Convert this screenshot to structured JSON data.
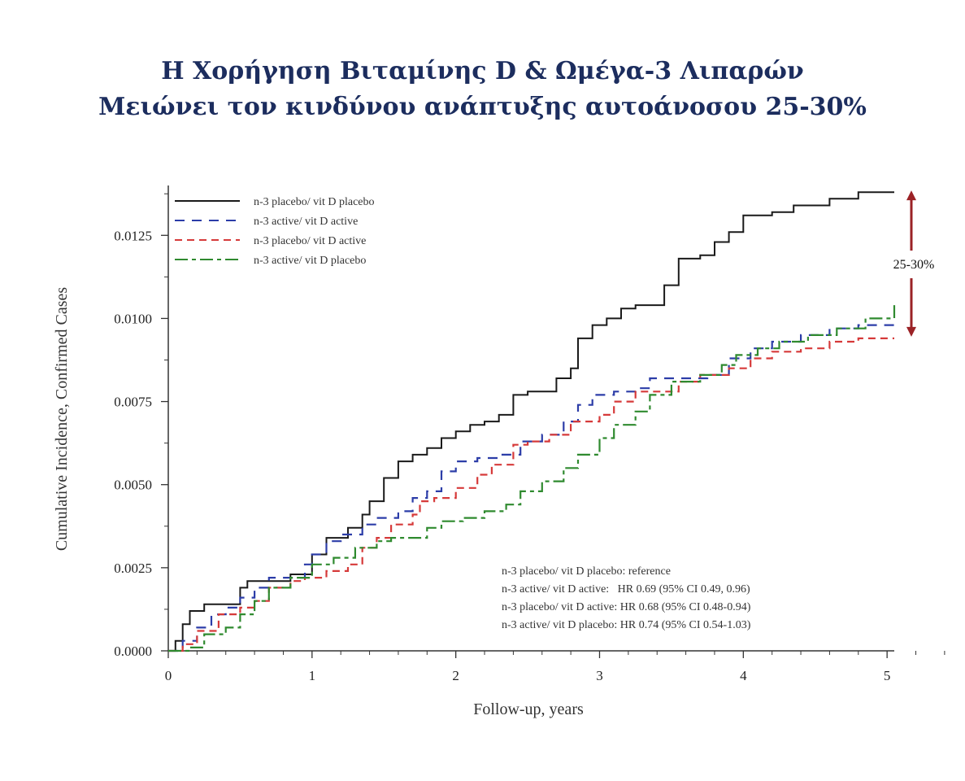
{
  "title": {
    "line1": "Η Χορήγηση Βιταμίνης D & Ωμέγα-3 Λιπαρών",
    "line2": "Μειώνει τον κινδύνου ανάπτυξης αυτοάνοσου 25-30%"
  },
  "chart_data": {
    "type": "line",
    "xlabel": "Follow-up, years",
    "ylabel": "Cumulative Incidence, Confirmed Cases",
    "xlim": [
      0,
      5.05
    ],
    "ylim": [
      0,
      0.014
    ],
    "x_ticks": [
      "0",
      "1",
      "2",
      "3",
      "4",
      "5"
    ],
    "y_ticks": [
      "0.0000",
      "0.0025",
      "0.0050",
      "0.0075",
      "0.0100",
      "0.0125"
    ],
    "grid": false,
    "legend_position": "top-left",
    "series": [
      {
        "name": "n-3 placebo/ vit D placebo",
        "color": "#1a1a1a",
        "dash": "solid",
        "points": [
          [
            0,
            0
          ],
          [
            0.05,
            0.0003
          ],
          [
            0.1,
            0.0008
          ],
          [
            0.15,
            0.0012
          ],
          [
            0.25,
            0.0014
          ],
          [
            0.4,
            0.0014
          ],
          [
            0.5,
            0.0019
          ],
          [
            0.55,
            0.0021
          ],
          [
            0.75,
            0.0021
          ],
          [
            0.85,
            0.0023
          ],
          [
            1.0,
            0.0029
          ],
          [
            1.1,
            0.0034
          ],
          [
            1.25,
            0.0037
          ],
          [
            1.35,
            0.0041
          ],
          [
            1.4,
            0.0045
          ],
          [
            1.5,
            0.0052
          ],
          [
            1.6,
            0.0057
          ],
          [
            1.7,
            0.0059
          ],
          [
            1.8,
            0.0061
          ],
          [
            1.9,
            0.0064
          ],
          [
            2.0,
            0.0066
          ],
          [
            2.1,
            0.0068
          ],
          [
            2.2,
            0.0069
          ],
          [
            2.3,
            0.0071
          ],
          [
            2.4,
            0.0077
          ],
          [
            2.5,
            0.0078
          ],
          [
            2.6,
            0.0078
          ],
          [
            2.7,
            0.0082
          ],
          [
            2.8,
            0.0085
          ],
          [
            2.85,
            0.0094
          ],
          [
            2.95,
            0.0098
          ],
          [
            3.05,
            0.01
          ],
          [
            3.15,
            0.0103
          ],
          [
            3.25,
            0.0104
          ],
          [
            3.4,
            0.0104
          ],
          [
            3.45,
            0.011
          ],
          [
            3.55,
            0.0118
          ],
          [
            3.7,
            0.0119
          ],
          [
            3.8,
            0.0123
          ],
          [
            3.9,
            0.0126
          ],
          [
            4.0,
            0.0131
          ],
          [
            4.2,
            0.0132
          ],
          [
            4.35,
            0.0134
          ],
          [
            4.6,
            0.0136
          ],
          [
            4.8,
            0.0138
          ],
          [
            5.05,
            0.0138
          ]
        ]
      },
      {
        "name": "n-3 active/ vit D active",
        "color": "#2c3da8",
        "dash": "long",
        "points": [
          [
            0,
            0
          ],
          [
            0.1,
            0.0003
          ],
          [
            0.2,
            0.0007
          ],
          [
            0.3,
            0.0011
          ],
          [
            0.4,
            0.0013
          ],
          [
            0.5,
            0.0016
          ],
          [
            0.6,
            0.0019
          ],
          [
            0.7,
            0.0022
          ],
          [
            0.85,
            0.0022
          ],
          [
            0.95,
            0.0026
          ],
          [
            1.0,
            0.0029
          ],
          [
            1.1,
            0.0033
          ],
          [
            1.2,
            0.0035
          ],
          [
            1.35,
            0.0038
          ],
          [
            1.45,
            0.004
          ],
          [
            1.6,
            0.0042
          ],
          [
            1.7,
            0.0046
          ],
          [
            1.8,
            0.0048
          ],
          [
            1.9,
            0.0054
          ],
          [
            2.0,
            0.0057
          ],
          [
            2.15,
            0.0058
          ],
          [
            2.3,
            0.0059
          ],
          [
            2.45,
            0.0063
          ],
          [
            2.6,
            0.0065
          ],
          [
            2.75,
            0.0069
          ],
          [
            2.85,
            0.0074
          ],
          [
            2.95,
            0.0077
          ],
          [
            3.1,
            0.0078
          ],
          [
            3.25,
            0.0079
          ],
          [
            3.35,
            0.0082
          ],
          [
            3.6,
            0.0082
          ],
          [
            3.75,
            0.0083
          ],
          [
            3.9,
            0.0088
          ],
          [
            4.05,
            0.0091
          ],
          [
            4.2,
            0.0093
          ],
          [
            4.4,
            0.0095
          ],
          [
            4.6,
            0.0097
          ],
          [
            4.8,
            0.0098
          ],
          [
            5.05,
            0.0099
          ]
        ]
      },
      {
        "name": "n-3 placebo/ vit D active",
        "color": "#d63a3a",
        "dash": "medium",
        "points": [
          [
            0,
            0
          ],
          [
            0.1,
            0.0002
          ],
          [
            0.2,
            0.0006
          ],
          [
            0.35,
            0.0011
          ],
          [
            0.5,
            0.0013
          ],
          [
            0.6,
            0.0015
          ],
          [
            0.7,
            0.0019
          ],
          [
            0.85,
            0.0021
          ],
          [
            0.95,
            0.0022
          ],
          [
            1.1,
            0.0024
          ],
          [
            1.25,
            0.0026
          ],
          [
            1.35,
            0.0031
          ],
          [
            1.45,
            0.0034
          ],
          [
            1.55,
            0.0038
          ],
          [
            1.7,
            0.0041
          ],
          [
            1.75,
            0.0045
          ],
          [
            1.85,
            0.0046
          ],
          [
            2.0,
            0.0049
          ],
          [
            2.15,
            0.0053
          ],
          [
            2.25,
            0.0056
          ],
          [
            2.4,
            0.0062
          ],
          [
            2.5,
            0.0063
          ],
          [
            2.65,
            0.0065
          ],
          [
            2.8,
            0.0069
          ],
          [
            3.0,
            0.0071
          ],
          [
            3.1,
            0.0075
          ],
          [
            3.25,
            0.0078
          ],
          [
            3.4,
            0.0078
          ],
          [
            3.55,
            0.0081
          ],
          [
            3.7,
            0.0083
          ],
          [
            3.9,
            0.0085
          ],
          [
            4.05,
            0.0088
          ],
          [
            4.2,
            0.009
          ],
          [
            4.4,
            0.0091
          ],
          [
            4.6,
            0.0093
          ],
          [
            4.8,
            0.0094
          ],
          [
            5.05,
            0.0094
          ]
        ]
      },
      {
        "name": "n-3 active/ vit D placebo",
        "color": "#2f8a2f",
        "dash": "dashdot",
        "points": [
          [
            0,
            0
          ],
          [
            0.15,
            0.0001
          ],
          [
            0.25,
            0.0005
          ],
          [
            0.4,
            0.0007
          ],
          [
            0.5,
            0.0011
          ],
          [
            0.6,
            0.0015
          ],
          [
            0.7,
            0.0019
          ],
          [
            0.85,
            0.0022
          ],
          [
            1.0,
            0.0026
          ],
          [
            1.15,
            0.0028
          ],
          [
            1.3,
            0.0031
          ],
          [
            1.45,
            0.0033
          ],
          [
            1.55,
            0.0034
          ],
          [
            1.8,
            0.0037
          ],
          [
            1.9,
            0.0039
          ],
          [
            2.05,
            0.004
          ],
          [
            2.2,
            0.0042
          ],
          [
            2.35,
            0.0044
          ],
          [
            2.45,
            0.0048
          ],
          [
            2.6,
            0.0051
          ],
          [
            2.75,
            0.0055
          ],
          [
            2.85,
            0.0059
          ],
          [
            3.0,
            0.0064
          ],
          [
            3.1,
            0.0068
          ],
          [
            3.25,
            0.0072
          ],
          [
            3.35,
            0.0077
          ],
          [
            3.5,
            0.0081
          ],
          [
            3.7,
            0.0083
          ],
          [
            3.85,
            0.0086
          ],
          [
            3.95,
            0.0089
          ],
          [
            4.1,
            0.0091
          ],
          [
            4.25,
            0.0093
          ],
          [
            4.45,
            0.0095
          ],
          [
            4.65,
            0.0097
          ],
          [
            4.85,
            0.01
          ],
          [
            5.05,
            0.0104
          ]
        ]
      }
    ],
    "annotations": [
      "n-3 placebo/ vit D placebo: reference",
      "n-3 active/ vit D active:   HR 0.69 (95% CI 0.49, 0.96)",
      "n-3 placebo/ vit D active: HR 0.68 (95% CI 0.48-0.94)",
      "n-3 active/ vit D placebo: HR 0.74 (95% CI 0.54-1.03)"
    ],
    "gap_label": "25-30%",
    "gap_arrow_color": "#9b2226"
  }
}
